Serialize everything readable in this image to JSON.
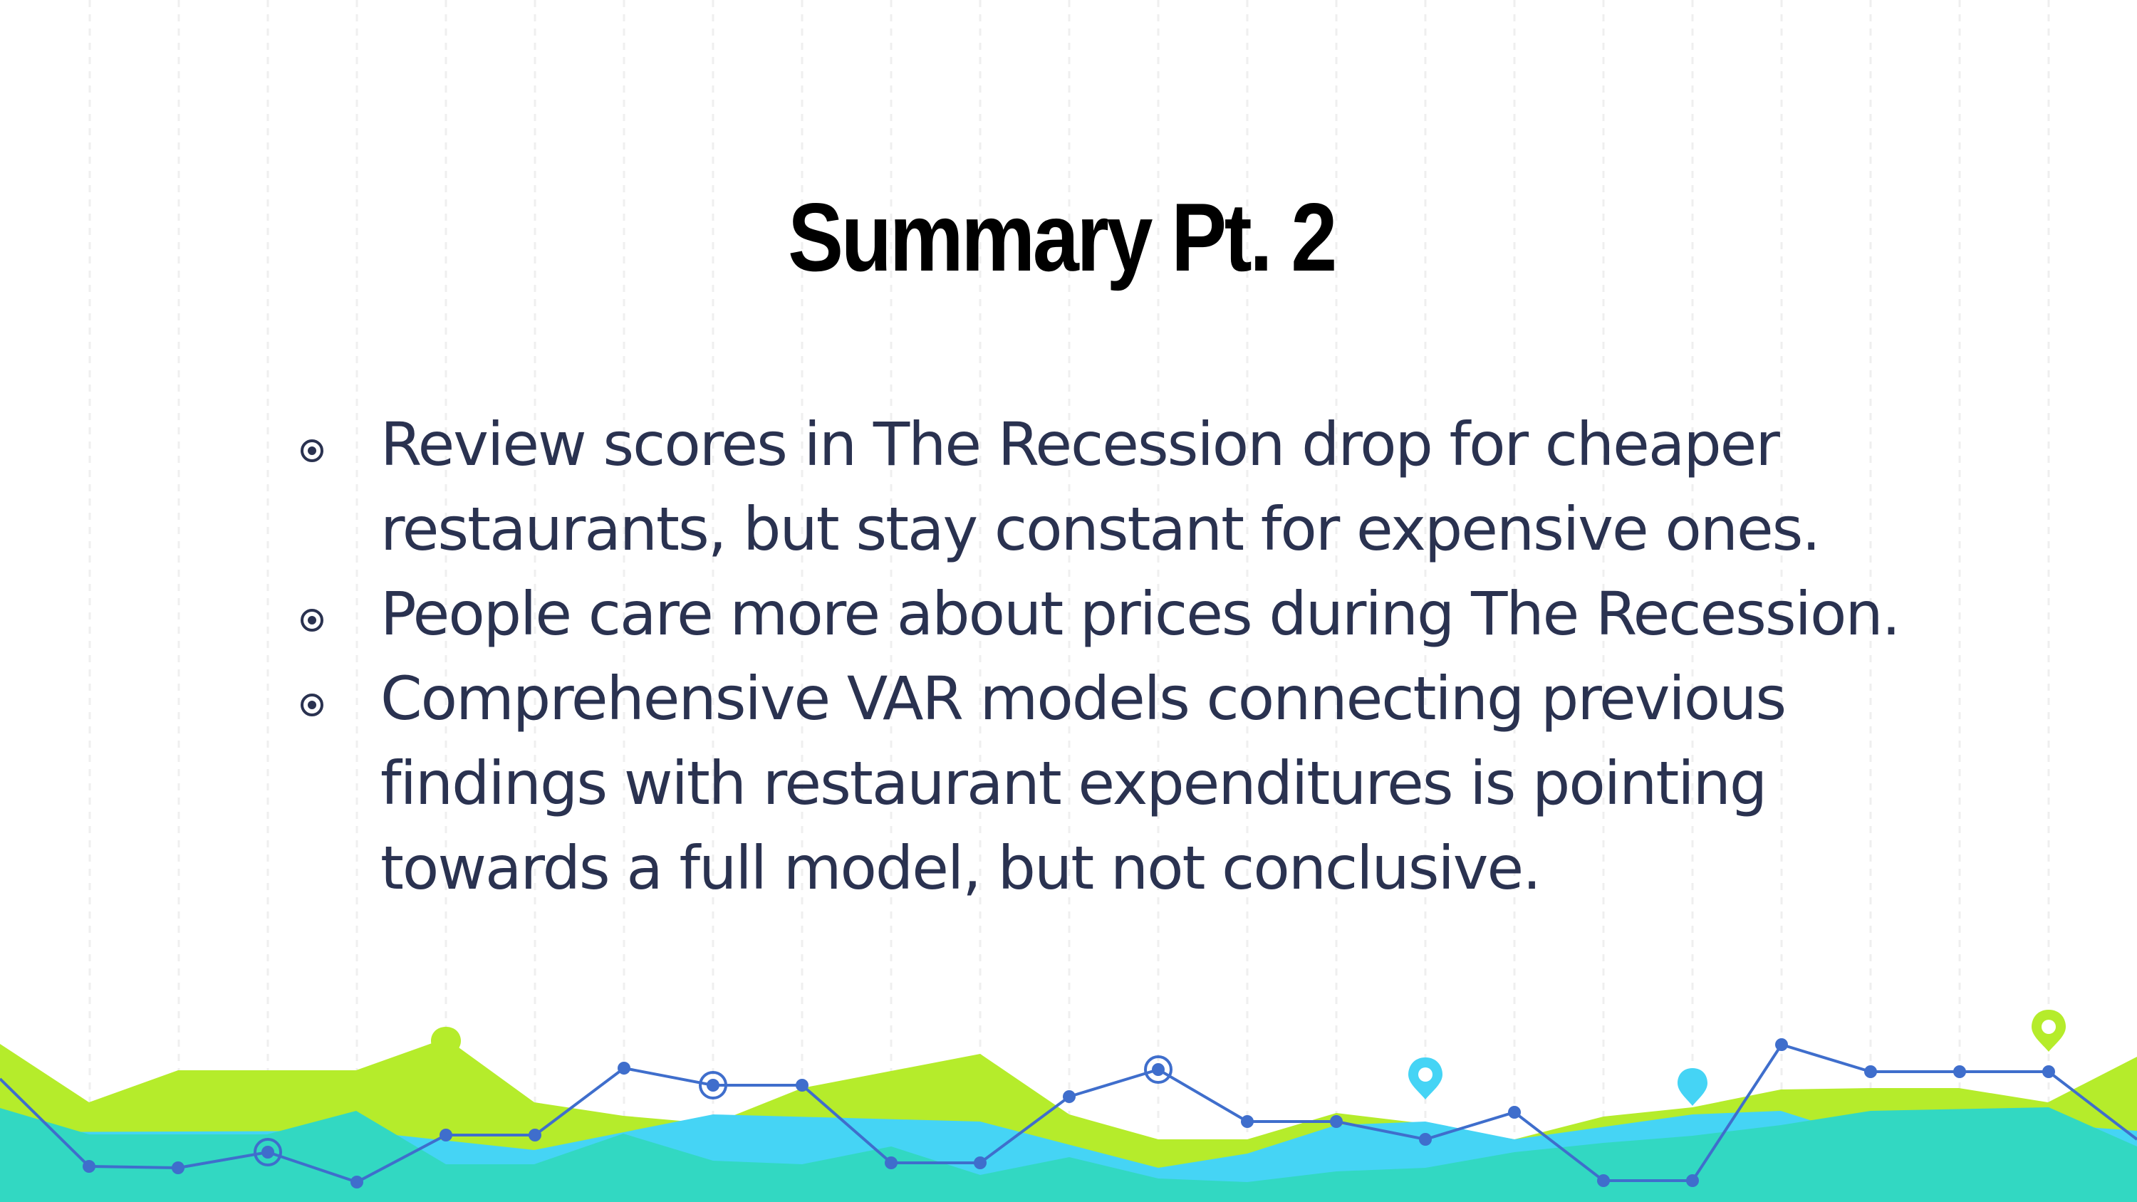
{
  "slide": {
    "title": "Summary Pt. 2",
    "bullets": [
      "Review scores in The Recession drop for cheaper restaurants, but stay constant for expensive ones.",
      "People care more about prices during The Recession.",
      "Comprehensive VAR models connecting previous findings with restaurant expenditures is pointing towards a full model, but not conclusive."
    ]
  },
  "theme": {
    "title_color": "#000000",
    "text_color": "#2a3250",
    "lime": "#b5ec2b",
    "teal": "#32d8c2",
    "sky": "#45d4f5",
    "line_blue": "#3f6ecc",
    "bullet_icon": "target-circle-icon"
  }
}
